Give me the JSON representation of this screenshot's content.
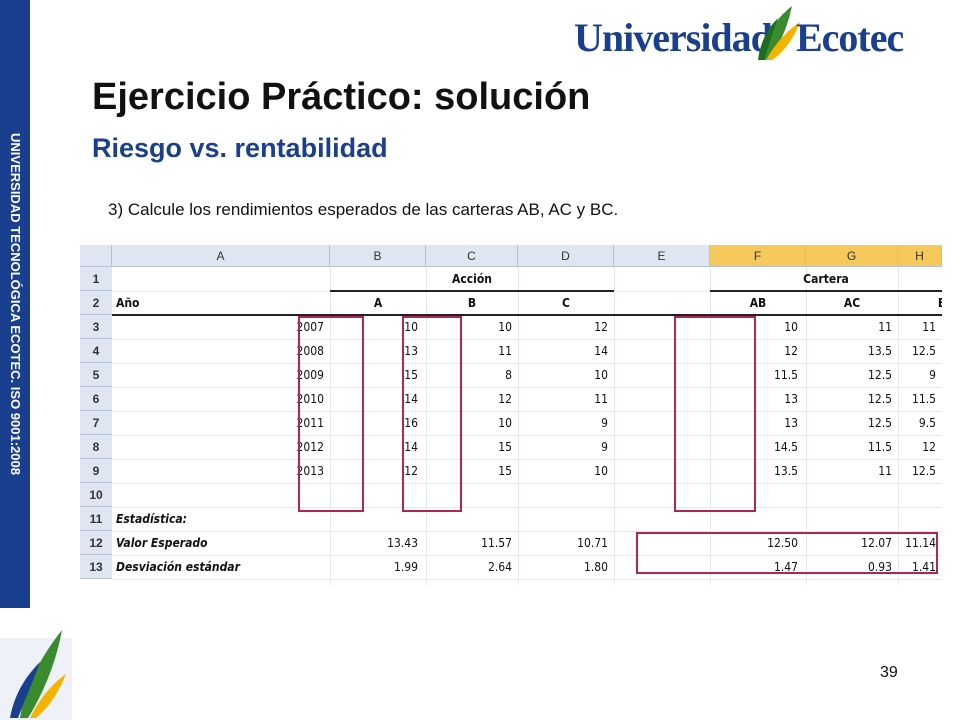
{
  "side_label": "UNIVERSIDAD TECNOLÓGICA ECOTEC. ISO 9001:2008",
  "logo": {
    "part1": "Universidad",
    "part2": "Ecotec"
  },
  "title": "Ejercicio Práctico: solución",
  "subtitle": "Riesgo vs. rentabilidad",
  "instruction": "3) Calcule los rendimientos esperados de las carteras AB, AC y BC.",
  "page_number": "39",
  "colors": {
    "brand_blue": "#1b3f8f",
    "highlight_box": "#b3264a",
    "header_fill": "#dfe6f1",
    "selected_header": "#f6c95c"
  },
  "sheet": {
    "columns": [
      "A",
      "B",
      "C",
      "D",
      "E",
      "F",
      "G",
      "H"
    ],
    "rows": [
      "1",
      "2",
      "3",
      "4",
      "5",
      "6",
      "7",
      "8",
      "9",
      "10",
      "11",
      "12",
      "13"
    ],
    "group_accion": "Acción",
    "group_cartera": "Cartera",
    "header_year": "Año",
    "sub_headers": [
      "A",
      "B",
      "C",
      "AB",
      "AC",
      "BC"
    ],
    "data": [
      [
        "2007",
        "10",
        "10",
        "12",
        "10",
        "11",
        "11"
      ],
      [
        "2008",
        "13",
        "11",
        "14",
        "12",
        "13.5",
        "12.5"
      ],
      [
        "2009",
        "15",
        "8",
        "10",
        "11.5",
        "12.5",
        "9"
      ],
      [
        "2010",
        "14",
        "12",
        "11",
        "13",
        "12.5",
        "11.5"
      ],
      [
        "2011",
        "16",
        "10",
        "9",
        "13",
        "12.5",
        "9.5"
      ],
      [
        "2012",
        "14",
        "15",
        "9",
        "14.5",
        "11.5",
        "12"
      ],
      [
        "2013",
        "12",
        "15",
        "10",
        "13.5",
        "11",
        "12.5"
      ]
    ],
    "stats_label": "Estadística:",
    "expected": {
      "label": "Valor Esperado",
      "values": [
        "13.43",
        "11.57",
        "10.71",
        "12.50",
        "12.07",
        "11.14"
      ]
    },
    "stdev": {
      "label": "Desviación estándar",
      "values": [
        "1.99",
        "2.64",
        "1.80",
        "1.47",
        "0.93",
        "1.41"
      ]
    }
  }
}
